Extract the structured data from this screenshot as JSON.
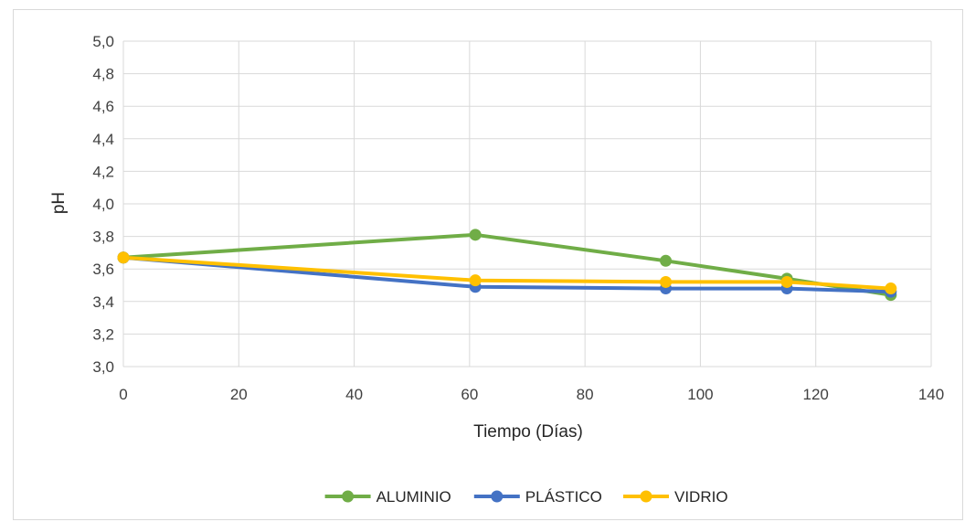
{
  "chart_data": {
    "type": "line",
    "title": "",
    "xlabel": "Tiempo (Días)",
    "ylabel": "pH",
    "xlim": [
      0,
      140
    ],
    "ylim": [
      3.0,
      5.0
    ],
    "x_ticks": [
      "0",
      "20",
      "40",
      "60",
      "80",
      "100",
      "120",
      "140"
    ],
    "y_ticks": [
      "3,0",
      "3,2",
      "3,4",
      "3,6",
      "3,8",
      "4,0",
      "4,2",
      "4,4",
      "4,6",
      "4,8",
      "5,0"
    ],
    "grid": true,
    "legend_position": "bottom",
    "x": [
      0,
      61,
      94,
      115,
      133
    ],
    "series": [
      {
        "name": "ALUMINIO",
        "color": "#70ad47",
        "values": [
          3.67,
          3.81,
          3.65,
          3.54,
          3.44
        ]
      },
      {
        "name": "PLÁSTICO",
        "color": "#4472c4",
        "values": [
          3.67,
          3.49,
          3.48,
          3.48,
          3.46
        ]
      },
      {
        "name": "VIDRIO",
        "color": "#ffc000",
        "values": [
          3.67,
          3.53,
          3.52,
          3.52,
          3.48
        ]
      }
    ]
  }
}
